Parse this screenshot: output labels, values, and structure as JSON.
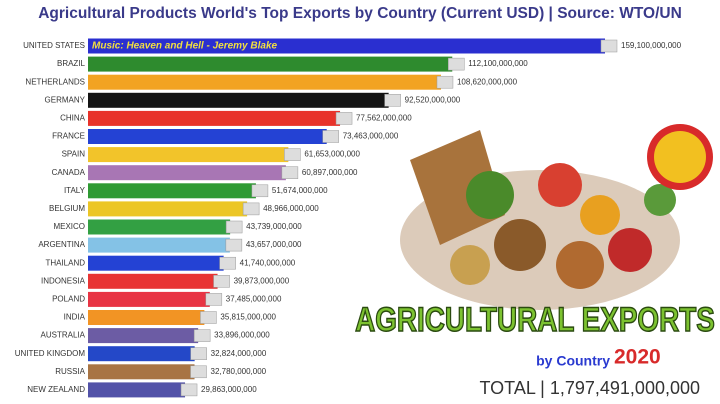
{
  "chart_data": {
    "type": "bar",
    "orientation": "horizontal",
    "title": "Agricultural Products World's Top Exports by Country (Current USD) | Source: WTO/UN",
    "categories": [
      "UNITED STATES",
      "BRAZIL",
      "NETHERLANDS",
      "GERMANY",
      "CHINA",
      "FRANCE",
      "SPAIN",
      "CANADA",
      "ITALY",
      "BELGIUM",
      "MEXICO",
      "ARGENTINA",
      "THAILAND",
      "INDONESIA",
      "POLAND",
      "INDIA",
      "AUSTRALIA",
      "UNITED KINGDOM",
      "RUSSIA",
      "NEW ZEALAND"
    ],
    "values": [
      159100000000,
      112100000000,
      108620000000,
      92520000000,
      77562000000,
      73463000000,
      61653000000,
      60897000000,
      51674000000,
      48966000000,
      43739000000,
      43657000000,
      41740000000,
      39873000000,
      37485000000,
      35815000000,
      33896000000,
      32824000000,
      32780000000,
      29863000000
    ],
    "value_labels": [
      "159,100,000,000",
      "112,100,000,000",
      "108,620,000,000",
      "92,520,000,000",
      "77,562,000,000",
      "73,463,000,000",
      "61,653,000,000",
      "60,897,000,000",
      "51,674,000,000",
      "48,966,000,000",
      "43,739,000,000",
      "43,657,000,000",
      "41,740,000,000",
      "39,873,000,000",
      "37,485,000,000",
      "35,815,000,000",
      "33,896,000,000",
      "32,824,000,000",
      "32,780,000,000",
      "29,863,000,000"
    ],
    "colors": [
      "#2a2fd0",
      "#2e8b2e",
      "#f2a322",
      "#141414",
      "#e8322a",
      "#2442d4",
      "#f2c42a",
      "#a876b4",
      "#2f9a34",
      "#ecc626",
      "#33a043",
      "#84c2e6",
      "#2442d4",
      "#e83434",
      "#e83444",
      "#f29424",
      "#6c5ca4",
      "#2448c8",
      "#a87444",
      "#5252a8"
    ],
    "annotations": [
      "Music: Heaven and Hell - Jeremy Blake",
      "AGRICULTURAL EXPORTS",
      "by Country",
      "2020",
      "TOTAL | 1,797,491,000,000"
    ]
  }
}
